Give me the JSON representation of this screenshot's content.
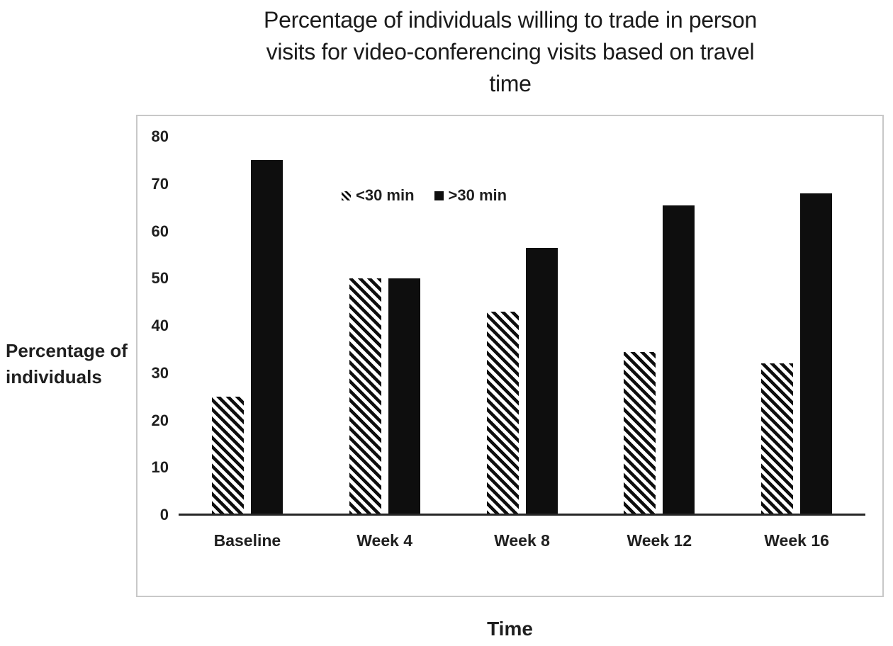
{
  "title": {
    "text": "Percentage of individuals willing to trade in person visits for video-conferencing visits based on travel time",
    "lines": [
      "Percentage of individuals willing to trade in person",
      "visits for video-conferencing visits based on travel",
      "time"
    ]
  },
  "axis_labels": {
    "y_full": "Percentage of individuals",
    "y_lines": [
      "Percentage of",
      "individuals"
    ],
    "x": "Time"
  },
  "chart_data": {
    "type": "bar",
    "title": "Percentage of individuals willing to trade in person visits for video-conferencing visits based on travel time",
    "categories": [
      "Baseline",
      "Week 4",
      "Week 8",
      "Week 12",
      "Week 16"
    ],
    "series": [
      {
        "name": "<30 min",
        "pattern": "diagonal-hatch",
        "color": "#0e0e0e",
        "values": [
          25,
          50,
          43,
          34.5,
          32
        ]
      },
      {
        "name": ">30 min",
        "pattern": "solid",
        "color": "#0e0e0e",
        "values": [
          75,
          50,
          56.5,
          65.5,
          68
        ]
      }
    ],
    "xlabel": "Time",
    "ylabel": "Percentage of individuals",
    "ylim": [
      0,
      80
    ],
    "yticks": [
      0,
      10,
      20,
      30,
      40,
      50,
      60,
      70,
      80
    ],
    "grid": false,
    "legend_position": "inside-top-center"
  },
  "colors": {
    "bar": "#0e0e0e",
    "axis_line": "#262626",
    "plot_border": "#c8c8c8",
    "text": "#1f1f1f",
    "background": "#ffffff"
  }
}
